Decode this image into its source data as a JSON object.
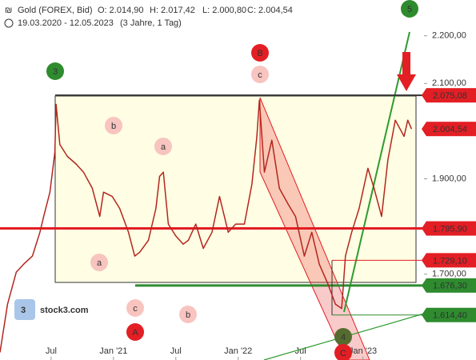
{
  "chart_data": {
    "type": "line",
    "title": "Gold (FOREX, Bid)",
    "ohlc_labels": [
      "O: 2.014,90",
      "H: 2.017,42",
      "L: 2.000,80",
      "C: 2.004,54"
    ],
    "subtitle": "19.03.2020 - 12.05.2023",
    "period": "(3 Jahre, 1 Tag)",
    "watermark": "stock3.com",
    "xlim": [
      2020.09,
      2023.49
    ],
    "ylim": [
      1520,
      2275
    ],
    "xticks": [
      {
        "value": 2020.5,
        "label": "Jul"
      },
      {
        "value": 2021,
        "label": "Jan '21"
      },
      {
        "value": 2021.5,
        "label": "Jul"
      },
      {
        "value": 2022,
        "label": "Jan '22"
      },
      {
        "value": 2022.5,
        "label": "Jul"
      },
      {
        "value": 2023,
        "label": "Jan '23"
      }
    ],
    "yticks": [
      {
        "value": 2200,
        "label": "2.200,00"
      },
      {
        "value": 2100,
        "label": "2.100,00"
      },
      {
        "value": 1900,
        "label": "1.900,00"
      },
      {
        "value": 1700,
        "label": "1.700,00"
      }
    ],
    "series": [
      {
        "name": "Gold",
        "color": "#b3261e",
        "x": [
          2020.09,
          2020.15,
          2020.22,
          2020.28,
          2020.35,
          2020.41,
          2020.44,
          2020.49,
          2020.53,
          2020.54,
          2020.57,
          2020.63,
          2020.7,
          2020.76,
          2020.83,
          2020.89,
          2020.92,
          2020.99,
          2021.05,
          2021.12,
          2021.17,
          2021.21,
          2021.28,
          2021.34,
          2021.37,
          2021.4,
          2021.44,
          2021.5,
          2021.56,
          2021.6,
          2021.66,
          2021.72,
          2021.79,
          2021.85,
          2021.92,
          2021.98,
          2022.05,
          2022.11,
          2022.15,
          2022.17,
          2022.21,
          2022.27,
          2022.33,
          2022.4,
          2022.46,
          2022.53,
          2022.59,
          2022.65,
          2022.72,
          2022.78,
          2022.83,
          2022.86,
          2022.91,
          2022.97,
          2023.04,
          2023.09,
          2023.15,
          2023.2,
          2023.26,
          2023.33,
          2023.36,
          2023.39
        ],
        "values": [
          1536,
          1637,
          1704,
          1721,
          1738,
          1788,
          1821,
          1872,
          1956,
          2056,
          1972,
          1947,
          1931,
          1914,
          1880,
          1821,
          1872,
          1863,
          1838,
          1788,
          1738,
          1746,
          1771,
          1838,
          1905,
          1914,
          1805,
          1780,
          1763,
          1771,
          1805,
          1754,
          1788,
          1863,
          1788,
          1805,
          1805,
          1889,
          1989,
          2065,
          1914,
          1981,
          1880,
          1847,
          1821,
          1738,
          1788,
          1721,
          1679,
          1637,
          1628,
          1738,
          1788,
          1838,
          1922,
          1880,
          1821,
          1939,
          2023,
          1989,
          2023,
          2004.54
        ]
      }
    ],
    "levels": [
      {
        "value": 2075.08,
        "label": "2.075,08",
        "color": "#e31e24"
      },
      {
        "value": 2004.54,
        "label": "2.004,54",
        "color": "#e31e24"
      },
      {
        "value": 1795.9,
        "label": "1.795,90",
        "color": "#e31e24"
      },
      {
        "value": 1729.1,
        "label": "1.729,10",
        "color": "#e31e24"
      },
      {
        "value": 1676.3,
        "label": "1.676,30",
        "color": "#2e8b2e"
      },
      {
        "value": 1614.4,
        "label": "1.614,40",
        "color": "#2e8b2e"
      }
    ],
    "waves": [
      "5",
      "3",
      "B",
      "c",
      "b",
      "a",
      "a",
      "c",
      "b",
      "A",
      "4",
      "C"
    ]
  }
}
